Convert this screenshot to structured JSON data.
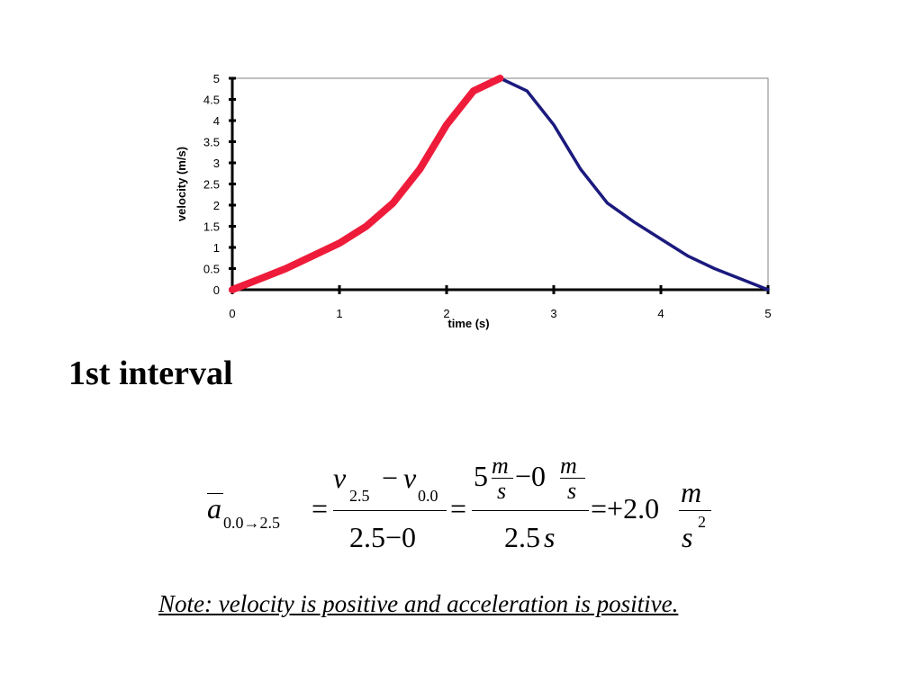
{
  "chart_data": {
    "type": "line",
    "title": "",
    "xlabel": "time (s)",
    "ylabel": "velocity (m/s)",
    "xlim": [
      0,
      5
    ],
    "ylim": [
      0,
      5
    ],
    "x_ticks": [
      "0",
      "1",
      "2",
      "3",
      "4",
      "5"
    ],
    "y_ticks": [
      "0",
      "0.5",
      "1",
      "1.5",
      "2",
      "2.5",
      "3",
      "3.5",
      "4",
      "4.5",
      "5"
    ],
    "grid": false,
    "legend": "none",
    "series": [
      {
        "color": "#ee1c3a",
        "highlight": true,
        "x": [
          0,
          0.25,
          0.5,
          0.75,
          1.0,
          1.25,
          1.5,
          1.75,
          2.0,
          2.25,
          2.5
        ],
        "y": [
          0,
          0.25,
          0.5,
          0.8,
          1.1,
          1.5,
          2.05,
          2.85,
          3.9,
          4.7,
          5.0
        ]
      },
      {
        "color": "#1a1a7e",
        "highlight": false,
        "x": [
          2.5,
          2.75,
          3.0,
          3.25,
          3.5,
          3.75,
          4.0,
          4.25,
          4.5,
          4.75,
          5.0
        ],
        "y": [
          5.0,
          4.7,
          3.9,
          2.85,
          2.05,
          1.6,
          1.2,
          0.8,
          0.5,
          0.25,
          0
        ]
      }
    ]
  },
  "heading": "1st interval",
  "equation": {
    "a_symbol": "a",
    "a_subscript": "0.0→2.5",
    "equals": "=",
    "num1_v_a": "v",
    "num1_sub_a": "2.5",
    "minus": "−",
    "num1_v_b": "v",
    "num1_sub_b": "0.0",
    "den1": "2.5−0",
    "num2_coef_a": "5",
    "num2_unit_top_a": "m",
    "num2_unit_bot_a": "s",
    "num2_minus_coef_b": "−0",
    "num2_unit_top_b": "m",
    "num2_unit_bot_b": "s",
    "den2_value": "2.5",
    "den2_unit": "s",
    "result": "=+2.0",
    "result_unit_top": "m",
    "result_unit_bot": "s",
    "result_unit_exp": "2"
  },
  "note": "Note: velocity is positive and acceleration is positive."
}
